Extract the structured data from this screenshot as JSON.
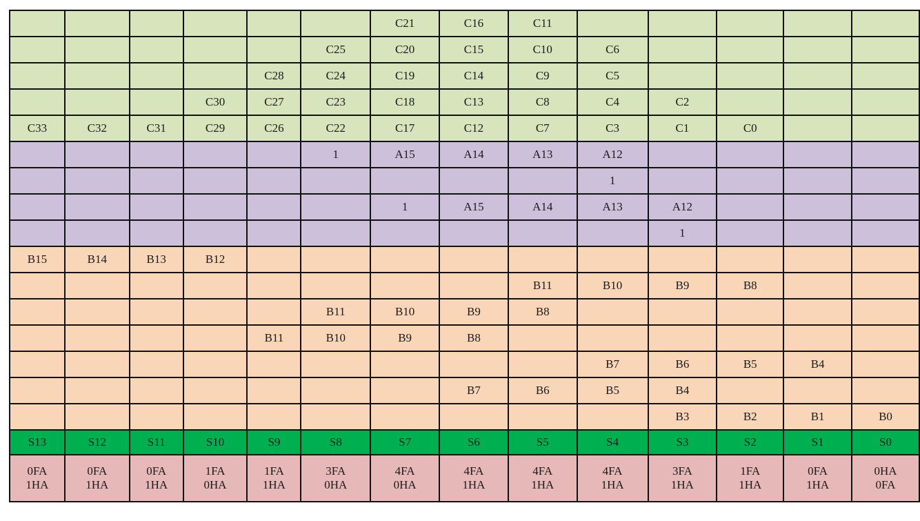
{
  "colors": {
    "c_rows": "#d8e4bc",
    "a_rows": "#ccc0da",
    "b_rows": "#fad6b8",
    "s_row": "#00b050",
    "fa_ha_row": "#e6b9b8"
  },
  "columns": 14,
  "rows": [
    {
      "group": "c",
      "cells": [
        "",
        "",
        "",
        "",
        "",
        "",
        "C21",
        "C16",
        "C11",
        "",
        "",
        "",
        "",
        ""
      ]
    },
    {
      "group": "c",
      "cells": [
        "",
        "",
        "",
        "",
        "",
        "C25",
        "C20",
        "C15",
        "C10",
        "C6",
        "",
        "",
        "",
        ""
      ]
    },
    {
      "group": "c",
      "cells": [
        "",
        "",
        "",
        "",
        "C28",
        "C24",
        "C19",
        "C14",
        "C9",
        "C5",
        "",
        "",
        "",
        ""
      ]
    },
    {
      "group": "c",
      "cells": [
        "",
        "",
        "",
        "C30",
        "C27",
        "C23",
        "C18",
        "C13",
        "C8",
        "C4",
        "C2",
        "",
        "",
        ""
      ]
    },
    {
      "group": "c",
      "cells": [
        "C33",
        "C32",
        "C31",
        "C29",
        "C26",
        "C22",
        "C17",
        "C12",
        "C7",
        "C3",
        "C1",
        "C0",
        "",
        ""
      ]
    },
    {
      "group": "a",
      "cells": [
        "",
        "",
        "",
        "",
        "",
        "1",
        "A15",
        "A14",
        "A13",
        "A12",
        "",
        "",
        "",
        ""
      ]
    },
    {
      "group": "a",
      "cells": [
        "",
        "",
        "",
        "",
        "",
        "",
        "",
        "",
        "",
        "1",
        "",
        "",
        "",
        ""
      ]
    },
    {
      "group": "a",
      "cells": [
        "",
        "",
        "",
        "",
        "",
        "",
        "1",
        "A15",
        "A14",
        "A13",
        "A12",
        "",
        "",
        ""
      ]
    },
    {
      "group": "a",
      "cells": [
        "",
        "",
        "",
        "",
        "",
        "",
        "",
        "",
        "",
        "",
        "1",
        "",
        "",
        ""
      ]
    },
    {
      "group": "b",
      "cells": [
        "B15",
        "B14",
        "B13",
        "B12",
        "",
        "",
        "",
        "",
        "",
        "",
        "",
        "",
        "",
        ""
      ]
    },
    {
      "group": "b",
      "cells": [
        "",
        "",
        "",
        "",
        "",
        "",
        "",
        "",
        "B11",
        "B10",
        "B9",
        "B8",
        "",
        ""
      ]
    },
    {
      "group": "b",
      "cells": [
        "",
        "",
        "",
        "",
        "",
        "B11",
        "B10",
        "B9",
        "B8",
        "",
        "",
        "",
        "",
        ""
      ]
    },
    {
      "group": "b",
      "cells": [
        "",
        "",
        "",
        "",
        "B11",
        "B10",
        "B9",
        "B8",
        "",
        "",
        "",
        "",
        "",
        ""
      ]
    },
    {
      "group": "b",
      "cells": [
        "",
        "",
        "",
        "",
        "",
        "",
        "",
        "",
        "",
        "B7",
        "B6",
        "B5",
        "B4",
        ""
      ]
    },
    {
      "group": "b",
      "cells": [
        "",
        "",
        "",
        "",
        "",
        "",
        "",
        "B7",
        "B6",
        "B5",
        "B4",
        "",
        "",
        ""
      ]
    },
    {
      "group": "b",
      "cells": [
        "",
        "",
        "",
        "",
        "",
        "",
        "",
        "",
        "",
        "",
        "B3",
        "B2",
        "B1",
        "B0"
      ]
    },
    {
      "group": "s",
      "cells": [
        "S13",
        "S12",
        "S11",
        "S10",
        "S9",
        "S8",
        "S7",
        "S6",
        "S5",
        "S4",
        "S3",
        "S2",
        "S1",
        "S0"
      ]
    },
    {
      "group": "f",
      "cells": [
        [
          "0FA",
          "1HA"
        ],
        [
          "0FA",
          "1HA"
        ],
        [
          "0FA",
          "1HA"
        ],
        [
          "1FA",
          "0HA"
        ],
        [
          "1FA",
          "1HA"
        ],
        [
          "3FA",
          "0HA"
        ],
        [
          "4FA",
          "0HA"
        ],
        [
          "4FA",
          "1HA"
        ],
        [
          "4FA",
          "1HA"
        ],
        [
          "4FA",
          "1HA"
        ],
        [
          "3FA",
          "1HA"
        ],
        [
          "1FA",
          "1HA"
        ],
        [
          "0FA",
          "1HA"
        ],
        [
          "0HA",
          "0FA"
        ]
      ]
    }
  ]
}
